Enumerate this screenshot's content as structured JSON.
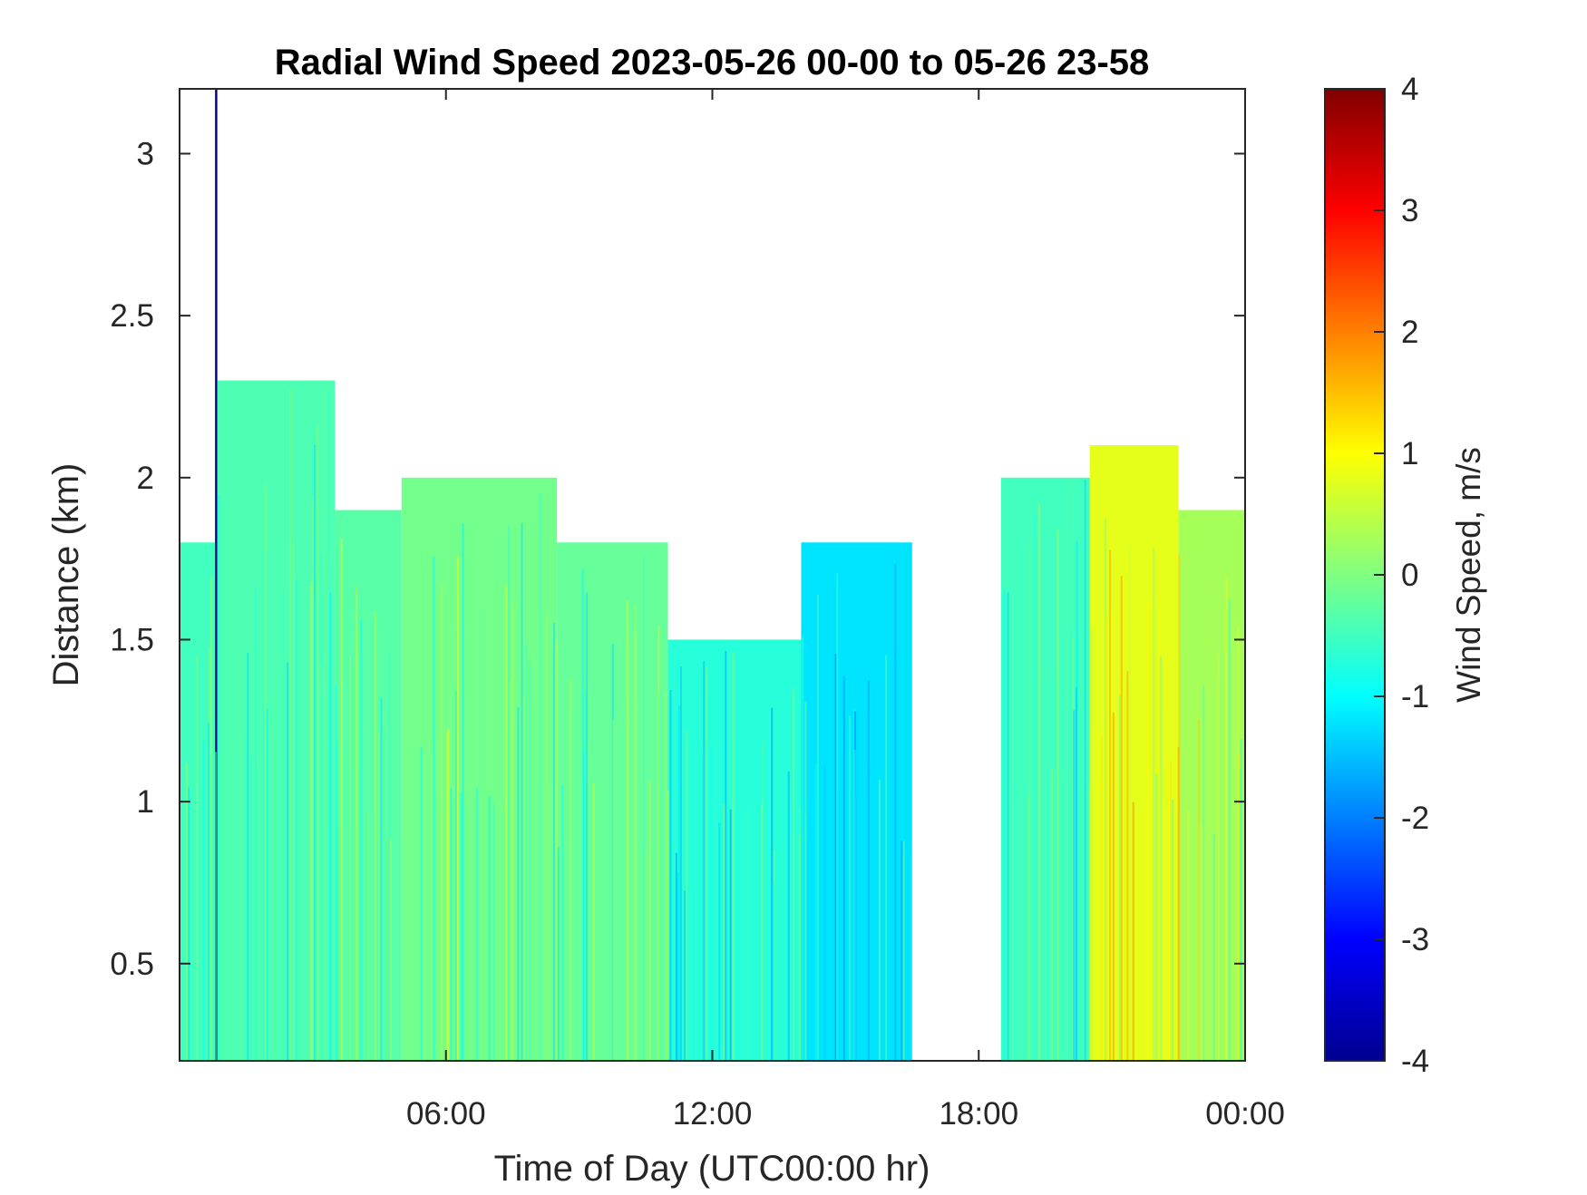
{
  "chart_data": {
    "type": "heatmap",
    "title": "Radial Wind Speed 2023-05-26 00-00 to 05-26 23-58",
    "xlabel": "Time of Day (UTC00:00 hr)",
    "ylabel": "Distance (km)",
    "x_unit": "hour of day (UTC)",
    "xlim": [
      0,
      24
    ],
    "ylim": [
      0.2,
      3.2
    ],
    "x_ticks": [
      {
        "value": 6,
        "label": "06:00"
      },
      {
        "value": 12,
        "label": "12:00"
      },
      {
        "value": 18,
        "label": "18:00"
      },
      {
        "value": 24,
        "label": "00:00"
      }
    ],
    "y_ticks": [
      {
        "value": 0.5,
        "label": "0.5"
      },
      {
        "value": 1,
        "label": "1"
      },
      {
        "value": 1.5,
        "label": "1.5"
      },
      {
        "value": 2,
        "label": "2"
      },
      {
        "value": 2.5,
        "label": "2.5"
      },
      {
        "value": 3,
        "label": "3"
      }
    ],
    "colorbar": {
      "label": "Wind Speed, m/s",
      "colormap": "jet",
      "clim": [
        -4,
        4
      ],
      "ticks": [
        {
          "value": 4,
          "label": "4"
        },
        {
          "value": 3,
          "label": "3"
        },
        {
          "value": 2,
          "label": "2"
        },
        {
          "value": 1,
          "label": "1"
        },
        {
          "value": 0,
          "label": "0"
        },
        {
          "value": -1,
          "label": "-1"
        },
        {
          "value": -2,
          "label": "-2"
        },
        {
          "value": -3,
          "label": "-3"
        },
        {
          "value": -4,
          "label": "-4"
        }
      ]
    },
    "data_coverage": [
      {
        "time_range": [
          0,
          0.8
        ],
        "max_distance_km": 1.8,
        "mean_speed": -0.5
      },
      {
        "time_range": [
          0.8,
          0.85
        ],
        "max_distance_km": 3.2,
        "mean_speed": -4.0
      },
      {
        "time_range": [
          0.85,
          3.5
        ],
        "max_distance_km": 2.3,
        "mean_speed": -0.4
      },
      {
        "time_range": [
          3.5,
          5.0
        ],
        "max_distance_km": 1.9,
        "mean_speed": -0.3
      },
      {
        "time_range": [
          5.0,
          8.5
        ],
        "max_distance_km": 2.0,
        "mean_speed": -0.1
      },
      {
        "time_range": [
          8.5,
          11.0
        ],
        "max_distance_km": 1.8,
        "mean_speed": -0.2
      },
      {
        "time_range": [
          11.0,
          14.0
        ],
        "max_distance_km": 1.5,
        "mean_speed": -0.7
      },
      {
        "time_range": [
          14.0,
          16.5
        ],
        "max_distance_km": 1.8,
        "mean_speed": -1.2
      },
      {
        "time_range": [
          18.5,
          20.5
        ],
        "max_distance_km": 2.0,
        "mean_speed": -0.5
      },
      {
        "time_range": [
          20.5,
          22.5
        ],
        "max_distance_km": 2.1,
        "mean_speed": 0.8
      },
      {
        "time_range": [
          22.5,
          24.0
        ],
        "max_distance_km": 1.9,
        "mean_speed": 0.3
      }
    ]
  }
}
